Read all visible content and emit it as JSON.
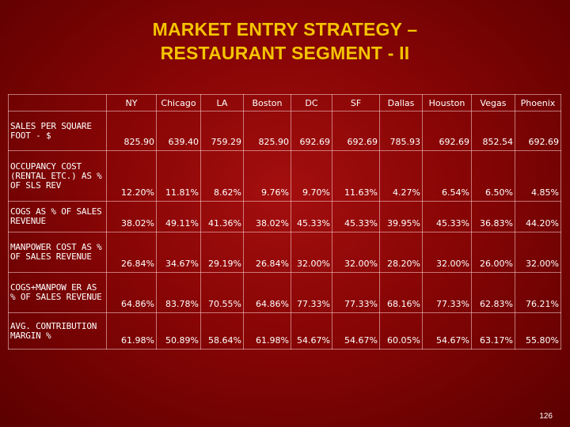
{
  "title": {
    "line1": "MARKET ENTRY STRATEGY –",
    "line2": "RESTAURANT SEGMENT - II"
  },
  "table": {
    "columns": [
      "NY",
      "Chicago",
      "LA",
      "Boston",
      "DC",
      "SF",
      "Dallas",
      "Houston",
      "Vegas",
      "Phoenix"
    ],
    "rows": [
      {
        "label": "SALES PER SQUARE FOOT - $",
        "values": [
          "825.90",
          "639.40",
          "759.29",
          "825.90",
          "692.69",
          "692.69",
          "785.93",
          "692.69",
          "852.54",
          "692.69"
        ]
      },
      {
        "label": "OCCUPANCY COST (RENTAL ETC.) AS % OF SLS REV",
        "values": [
          "12.20%",
          "11.81%",
          "8.62%",
          "9.76%",
          "9.70%",
          "11.63%",
          "4.27%",
          "6.54%",
          "6.50%",
          "4.85%"
        ]
      },
      {
        "label": "COGS AS % OF SALES REVENUE",
        "values": [
          "38.02%",
          "49.11%",
          "41.36%",
          "38.02%",
          "45.33%",
          "45.33%",
          "39.95%",
          "45.33%",
          "36.83%",
          "44.20%"
        ]
      },
      {
        "label": "MANPOWER COST AS % OF SALES REVENUE",
        "values": [
          "26.84%",
          "34.67%",
          "29.19%",
          "26.84%",
          "32.00%",
          "32.00%",
          "28.20%",
          "32.00%",
          "26.00%",
          "32.00%"
        ]
      },
      {
        "label": "COGS+MANPOW ER AS % OF SALES REVENUE",
        "values": [
          "64.86%",
          "83.78%",
          "70.55%",
          "64.86%",
          "77.33%",
          "77.33%",
          "68.16%",
          "77.33%",
          "62.83%",
          "76.21%"
        ]
      },
      {
        "label": "AVG. CONTRIBUTION MARGIN %",
        "values": [
          "61.98%",
          "50.89%",
          "58.64%",
          "61.98%",
          "54.67%",
          "54.67%",
          "60.05%",
          "54.67%",
          "63.17%",
          "55.80%"
        ]
      }
    ]
  },
  "page_number": "126",
  "colors": {
    "background": "#8a0606",
    "title": "#f5c400",
    "text": "#ffffff",
    "grid_lines": "#ffd7d7"
  }
}
